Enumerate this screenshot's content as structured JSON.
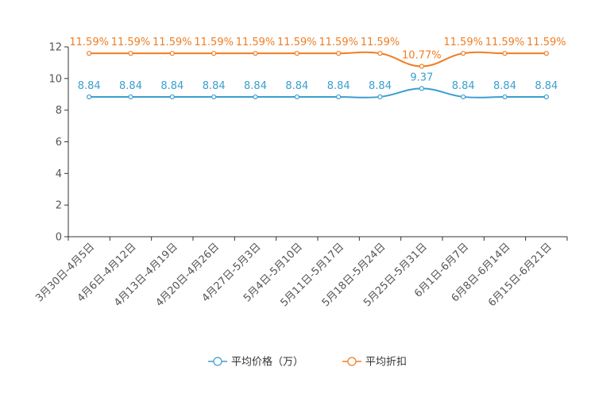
{
  "chart_data": {
    "type": "line",
    "title": "",
    "xlabel": "",
    "ylabel": "",
    "ylim": [
      0,
      12
    ],
    "yticks": [
      0,
      2,
      4,
      6,
      8,
      10,
      12
    ],
    "grid": false,
    "legend_position": "bottom-center",
    "categories": [
      "3月30日-4月5日",
      "4月6日-4月12日",
      "4月13日-4月19日",
      "4月20日-4月26日",
      "4月27日-5月3日",
      "5月4日-5月10日",
      "5月11日-5月17日",
      "5月18日-5月24日",
      "5月25日-5月31日",
      "6月1日-6月7日",
      "6月8日-6月14日",
      "6月15日-6月21日"
    ],
    "series": [
      {
        "name": "平均价格（万）",
        "color": "#3a9fcf",
        "values": [
          8.84,
          8.84,
          8.84,
          8.84,
          8.84,
          8.84,
          8.84,
          8.84,
          9.37,
          8.84,
          8.84,
          8.84
        ],
        "labels": [
          "8.84",
          "8.84",
          "8.84",
          "8.84",
          "8.84",
          "8.84",
          "8.84",
          "8.84",
          "9.37",
          "8.84",
          "8.84",
          "8.84"
        ]
      },
      {
        "name": "平均折扣",
        "color": "#f07d23",
        "values": [
          11.59,
          11.59,
          11.59,
          11.59,
          11.59,
          11.59,
          11.59,
          11.59,
          10.77,
          11.59,
          11.59,
          11.59
        ],
        "labels": [
          "11.59%",
          "11.59%",
          "11.59%",
          "11.59%",
          "11.59%",
          "11.59%",
          "11.59%",
          "11.59%",
          "10.77%",
          "11.59%",
          "11.59%",
          "11.59%"
        ]
      }
    ]
  }
}
